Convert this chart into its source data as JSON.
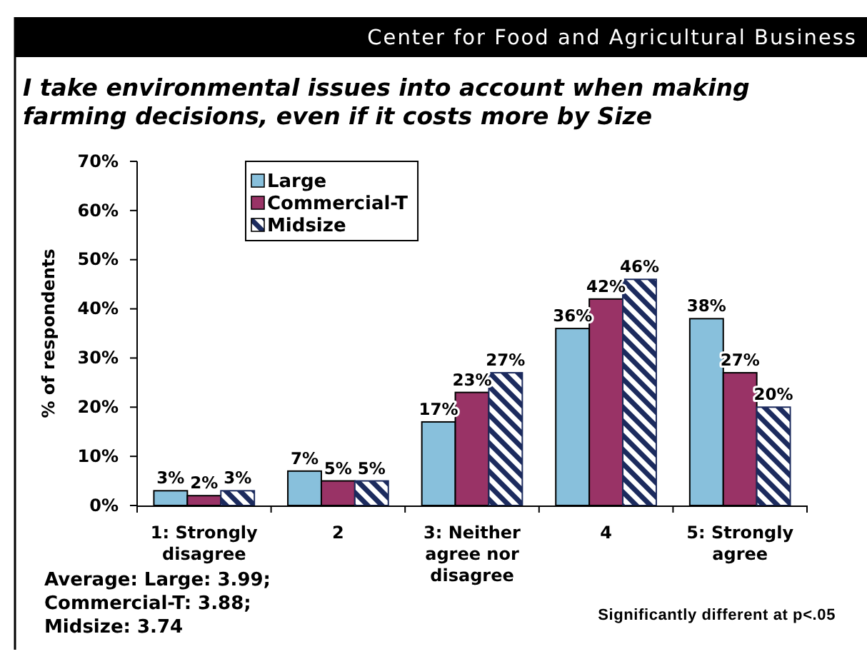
{
  "chart_data": {
    "type": "bar",
    "title": "I take environmental issues into account when making farming decisions, even if it costs more by Size",
    "ylabel": "% of respondents",
    "categories": [
      "1: Strongly disagree",
      "2",
      "3: Neither agree nor disagree",
      "4",
      "5: Strongly agree"
    ],
    "series": [
      {
        "name": "Large",
        "color": "#88c0dc",
        "values": [
          3,
          7,
          17,
          36,
          38
        ],
        "value_labels": [
          "3%",
          "7%",
          "17%",
          "36%",
          "38%"
        ]
      },
      {
        "name": "Commercial-T",
        "color": "#993366",
        "values": [
          2,
          5,
          23,
          42,
          27
        ],
        "value_labels": [
          "2%",
          "5%",
          "23%",
          "42%",
          "27%"
        ]
      },
      {
        "name": "Midsize",
        "color": "#1c2b5e",
        "values": [
          3,
          5,
          27,
          46,
          20
        ],
        "value_labels": [
          "3%",
          "5%",
          "27%",
          "46%",
          "20%"
        ]
      }
    ],
    "ylim": [
      0,
      70
    ],
    "yticks": [
      {
        "value": 0,
        "label": "0%"
      },
      {
        "value": 10,
        "label": "10%"
      },
      {
        "value": 20,
        "label": "20%"
      },
      {
        "value": 30,
        "label": "30%"
      },
      {
        "value": 40,
        "label": "40%"
      },
      {
        "value": 50,
        "label": "50%"
      },
      {
        "value": 60,
        "label": "60%"
      },
      {
        "value": 70,
        "label": "70%"
      }
    ],
    "legend": "top left",
    "annotations": [
      "Center for Food and Agricultural Business",
      "Average: Large: 3.99; Commercial-T: 3.88; Midsize: 3.74",
      "Significantly different at p<.05"
    ]
  }
}
